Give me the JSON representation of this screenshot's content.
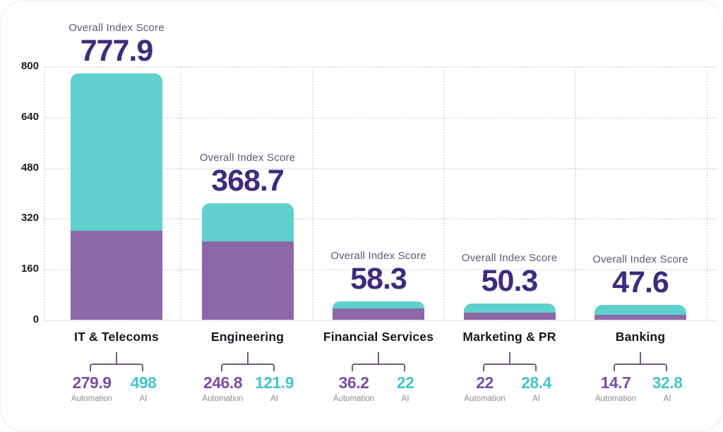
{
  "chart_data": {
    "type": "bar",
    "stacked": true,
    "title": "",
    "score_label": "Overall Index Score",
    "categories": [
      "IT & Telecoms",
      "Engineering",
      "Financial Services",
      "Marketing & PR",
      "Banking"
    ],
    "totals": [
      777.9,
      368.7,
      58.3,
      50.3,
      47.6
    ],
    "series": [
      {
        "name": "Automation",
        "color": "#8c68a8",
        "value_color": "#7b4fa0",
        "values": [
          279.9,
          246.8,
          36.2,
          22,
          14.7
        ]
      },
      {
        "name": "AI",
        "color": "#5fd0cd",
        "value_color": "#44c7c7",
        "values": [
          498,
          121.9,
          22,
          28.4,
          32.8
        ]
      }
    ],
    "ylim": [
      0,
      800
    ],
    "yticks": [
      0,
      160,
      320,
      480,
      640,
      800
    ],
    "grid": "dashed-both-axes",
    "legend_position": "below-each-bar",
    "colors": {
      "score_text": "#3e2b7e",
      "score_label_text": "#5d5878",
      "axis_text": "#1c1c24",
      "category_text": "#17171f",
      "grid_line": "#dedee2",
      "bracket": "#6e5a87",
      "sublabel_text": "#8d8995",
      "background": "#ffffff"
    }
  }
}
